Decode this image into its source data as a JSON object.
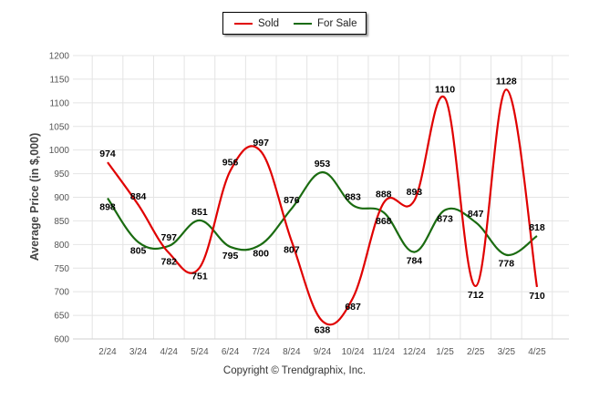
{
  "legend": {
    "sold_label": "Sold",
    "forsale_label": "For Sale"
  },
  "footer": "Copyright © Trendgraphix, Inc.",
  "colors": {
    "sold": "#e00000",
    "for_sale": "#1a6b10",
    "grid": "#e4e4e4",
    "axis_text": "#555555"
  },
  "chart_data": {
    "type": "line",
    "title": "",
    "xlabel": "",
    "ylabel": "Average Price (in $,000)",
    "categories": [
      "2/24",
      "3/24",
      "4/24",
      "5/24",
      "6/24",
      "7/24",
      "8/24",
      "9/24",
      "10/24",
      "11/24",
      "12/24",
      "1/25",
      "2/25",
      "3/25",
      "4/25"
    ],
    "yticks": [
      600,
      650,
      700,
      750,
      800,
      850,
      900,
      950,
      1000,
      1050,
      1100,
      1150,
      1200
    ],
    "ylim": [
      600,
      1200
    ],
    "grid": true,
    "legend_position": "top-center",
    "series": [
      {
        "name": "Sold",
        "color": "#e00000",
        "values": [
          974,
          884,
          782,
          751,
          956,
          997,
          807,
          638,
          687,
          888,
          893,
          1110,
          712,
          1128,
          710
        ]
      },
      {
        "name": "For Sale",
        "color": "#1a6b10",
        "values": [
          898,
          805,
          797,
          851,
          795,
          800,
          876,
          953,
          883,
          868,
          784,
          873,
          847,
          778,
          818
        ]
      }
    ]
  }
}
